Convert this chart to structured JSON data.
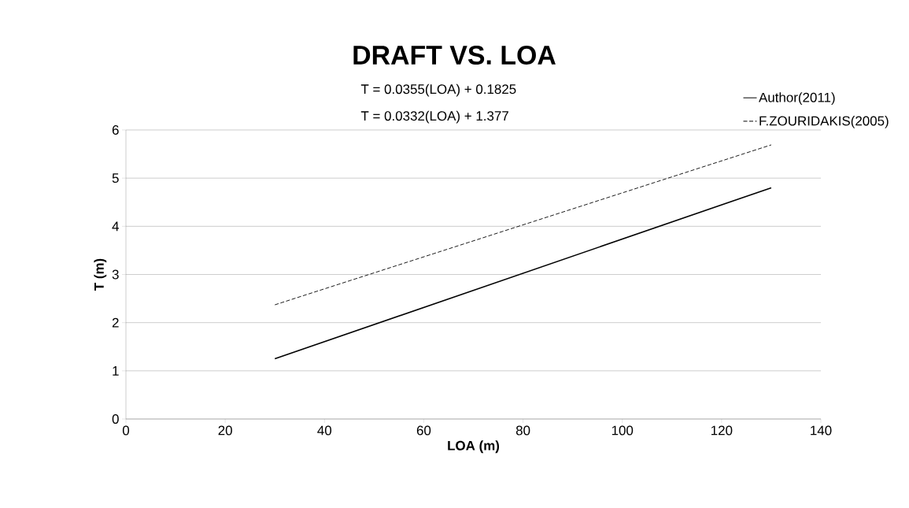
{
  "chart_data": {
    "type": "line",
    "title": "DRAFT VS. LOA",
    "xlabel": "LOA (m)",
    "ylabel": "T (m)",
    "x": [
      30,
      130
    ],
    "series": [
      {
        "name": "Author(2011)",
        "color": "#000000",
        "line_style": "solid",
        "values": [
          1.25,
          4.8
        ]
      },
      {
        "name": "F.ZOURIDAKIS(2005)",
        "color": "#000000",
        "line_style": "dashed",
        "values": [
          2.37,
          5.69
        ]
      }
    ],
    "annotations": [
      "T = 0.0355(LOA) + 0.1825",
      "T = 0.0332(LOA) + 1.377"
    ],
    "xlim": [
      0,
      140
    ],
    "xticks": [
      0,
      20,
      40,
      60,
      80,
      100,
      120,
      140
    ],
    "ylim": [
      0,
      6
    ],
    "yticks": [
      0,
      1,
      2,
      3,
      4,
      5,
      6
    ],
    "grid": "y",
    "legend": "top right"
  }
}
